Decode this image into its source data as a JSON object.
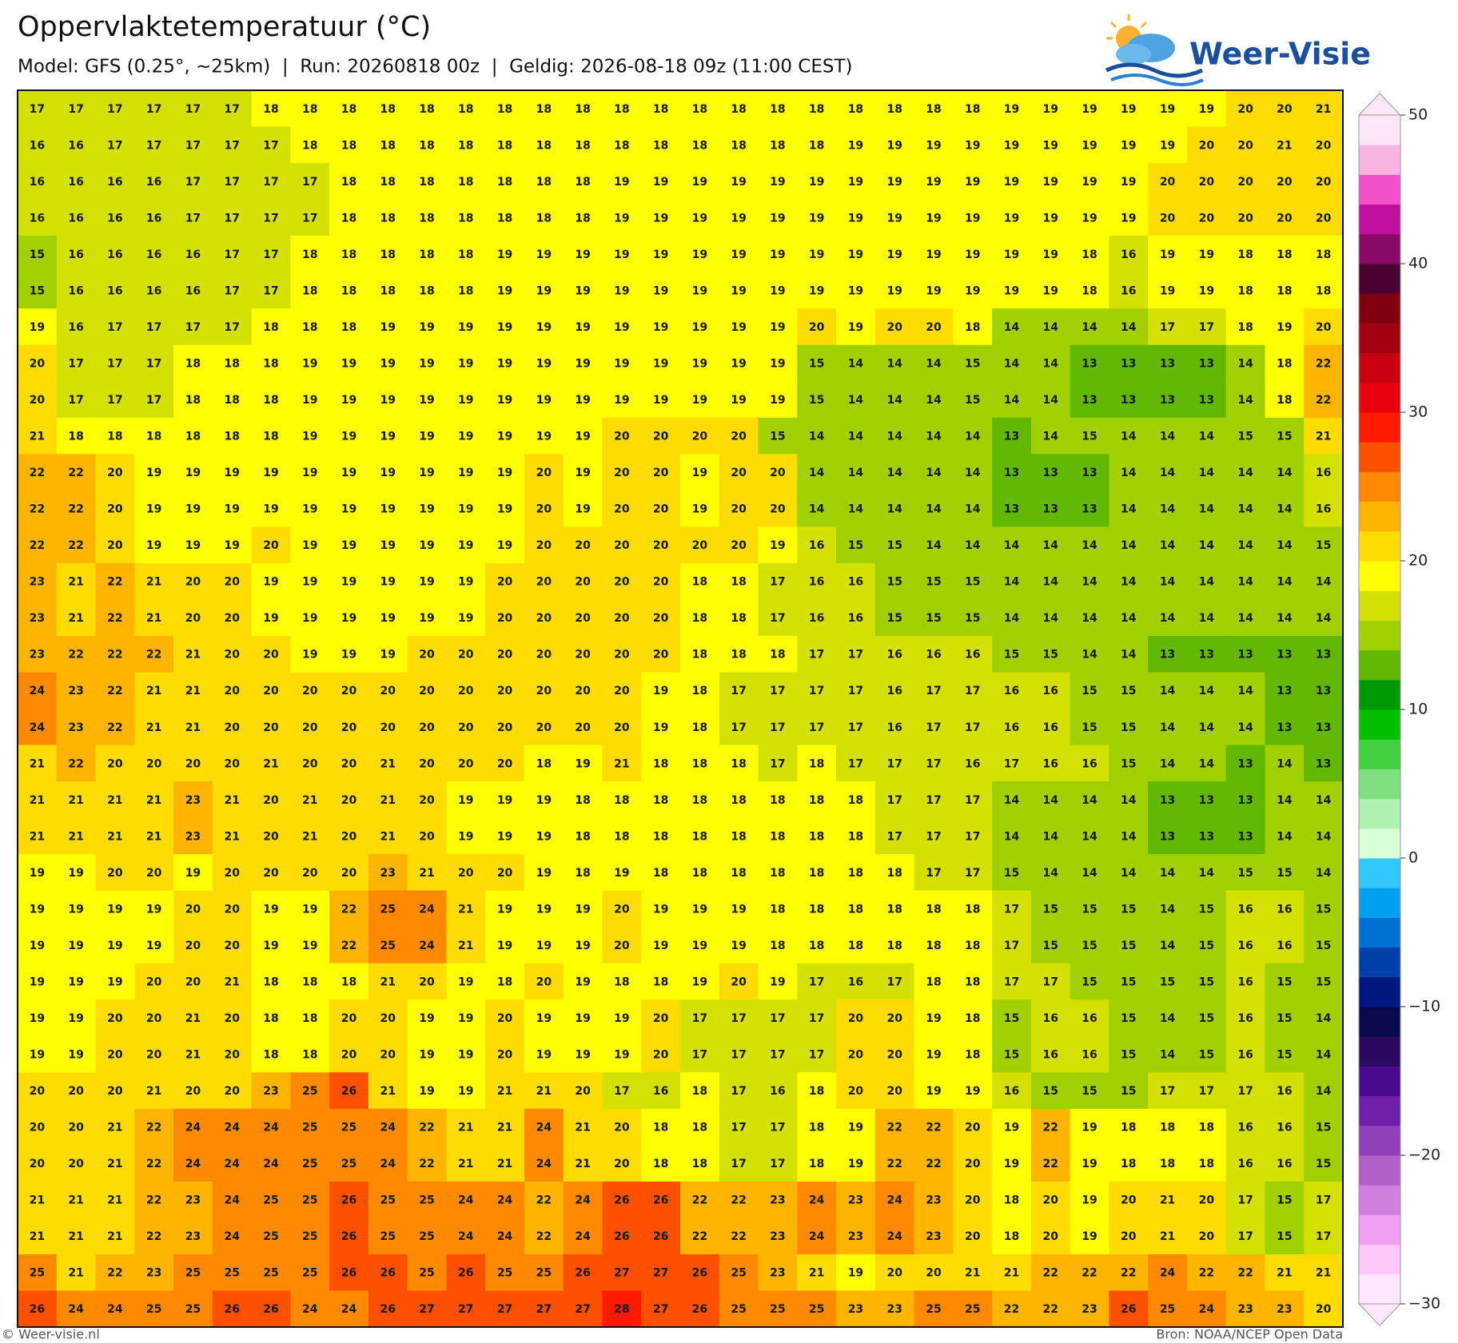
{
  "title": "Oppervlaktetemperatuur (°C)",
  "subtitle": "Model: GFS (0.25°, ~25km)  |  Run: 20260818 00z  |  Geldig: 2026-08-18 09z (11:00 CEST)",
  "logo": "Weer-Visie",
  "grid": {
    "rows": [
      [
        17,
        17,
        17,
        17,
        17,
        17,
        18,
        18,
        18,
        18,
        18,
        18,
        18,
        18,
        18,
        18,
        18,
        18,
        18,
        18,
        18,
        18,
        18,
        18,
        18,
        19,
        19,
        19,
        19,
        19,
        19,
        20,
        20,
        21
      ],
      [
        16,
        16,
        17,
        17,
        17,
        17,
        17,
        18,
        18,
        18,
        18,
        18,
        18,
        18,
        18,
        18,
        18,
        18,
        18,
        18,
        18,
        19,
        19,
        19,
        19,
        19,
        19,
        19,
        19,
        19,
        20,
        20,
        21,
        20
      ],
      [
        16,
        16,
        16,
        16,
        17,
        17,
        17,
        17,
        18,
        18,
        18,
        18,
        18,
        18,
        18,
        19,
        19,
        19,
        19,
        19,
        19,
        19,
        19,
        19,
        19,
        19,
        19,
        19,
        19,
        20,
        20,
        20,
        20,
        20
      ],
      [
        16,
        16,
        16,
        16,
        17,
        17,
        17,
        17,
        18,
        18,
        18,
        18,
        18,
        18,
        18,
        19,
        19,
        19,
        19,
        19,
        19,
        19,
        19,
        19,
        19,
        19,
        19,
        19,
        19,
        20,
        20,
        20,
        20,
        20
      ],
      [
        15,
        16,
        16,
        16,
        16,
        17,
        17,
        18,
        18,
        18,
        18,
        18,
        19,
        19,
        19,
        19,
        19,
        19,
        19,
        19,
        19,
        19,
        19,
        19,
        19,
        19,
        19,
        18,
        16,
        19,
        19,
        18,
        18,
        18
      ],
      [
        15,
        16,
        16,
        16,
        16,
        17,
        17,
        18,
        18,
        18,
        18,
        18,
        19,
        19,
        19,
        19,
        19,
        19,
        19,
        19,
        19,
        19,
        19,
        19,
        19,
        19,
        19,
        18,
        16,
        19,
        19,
        18,
        18,
        18
      ],
      [
        19,
        16,
        17,
        17,
        17,
        17,
        18,
        18,
        18,
        19,
        19,
        19,
        19,
        19,
        19,
        19,
        19,
        19,
        19,
        19,
        20,
        19,
        20,
        20,
        18,
        14,
        14,
        14,
        14,
        17,
        17,
        18,
        19,
        20
      ],
      [
        20,
        17,
        17,
        17,
        18,
        18,
        18,
        19,
        19,
        19,
        19,
        19,
        19,
        19,
        19,
        19,
        19,
        19,
        19,
        19,
        15,
        14,
        14,
        14,
        15,
        14,
        14,
        13,
        13,
        13,
        13,
        14,
        18,
        22
      ],
      [
        20,
        17,
        17,
        17,
        18,
        18,
        18,
        19,
        19,
        19,
        19,
        19,
        19,
        19,
        19,
        19,
        19,
        19,
        19,
        19,
        15,
        14,
        14,
        14,
        15,
        14,
        14,
        13,
        13,
        13,
        13,
        14,
        18,
        22
      ],
      [
        21,
        18,
        18,
        18,
        18,
        18,
        18,
        19,
        19,
        19,
        19,
        19,
        19,
        19,
        19,
        20,
        20,
        20,
        20,
        15,
        14,
        14,
        14,
        14,
        14,
        13,
        14,
        15,
        14,
        14,
        14,
        15,
        15,
        21
      ],
      [
        22,
        22,
        20,
        19,
        19,
        19,
        19,
        19,
        19,
        19,
        19,
        19,
        19,
        20,
        19,
        20,
        20,
        19,
        20,
        20,
        14,
        14,
        14,
        14,
        14,
        13,
        13,
        13,
        14,
        14,
        14,
        14,
        14,
        16
      ],
      [
        22,
        22,
        20,
        19,
        19,
        19,
        19,
        19,
        19,
        19,
        19,
        19,
        19,
        20,
        19,
        20,
        20,
        19,
        20,
        20,
        14,
        14,
        14,
        14,
        14,
        13,
        13,
        13,
        14,
        14,
        14,
        14,
        14,
        16
      ],
      [
        22,
        22,
        20,
        19,
        19,
        19,
        20,
        19,
        19,
        19,
        19,
        19,
        19,
        20,
        20,
        20,
        20,
        20,
        20,
        19,
        16,
        15,
        15,
        14,
        14,
        14,
        14,
        14,
        14,
        14,
        14,
        14,
        14,
        15
      ],
      [
        23,
        21,
        22,
        21,
        20,
        20,
        19,
        19,
        19,
        19,
        19,
        19,
        20,
        20,
        20,
        20,
        20,
        18,
        18,
        17,
        16,
        16,
        15,
        15,
        15,
        14,
        14,
        14,
        14,
        14,
        14,
        14,
        14,
        14
      ],
      [
        23,
        21,
        22,
        21,
        20,
        20,
        19,
        19,
        19,
        19,
        19,
        19,
        20,
        20,
        20,
        20,
        20,
        18,
        18,
        17,
        16,
        16,
        15,
        15,
        15,
        14,
        14,
        14,
        14,
        14,
        14,
        14,
        14,
        14
      ],
      [
        23,
        22,
        22,
        22,
        21,
        20,
        20,
        19,
        19,
        19,
        20,
        20,
        20,
        20,
        20,
        20,
        20,
        18,
        18,
        18,
        17,
        17,
        16,
        16,
        16,
        15,
        15,
        14,
        14,
        13,
        13,
        13,
        13,
        13
      ],
      [
        24,
        23,
        22,
        21,
        21,
        20,
        20,
        20,
        20,
        20,
        20,
        20,
        20,
        20,
        20,
        20,
        19,
        18,
        17,
        17,
        17,
        17,
        16,
        17,
        17,
        16,
        16,
        15,
        15,
        14,
        14,
        14,
        13,
        13
      ],
      [
        24,
        23,
        22,
        21,
        21,
        20,
        20,
        20,
        20,
        20,
        20,
        20,
        20,
        20,
        20,
        20,
        19,
        18,
        17,
        17,
        17,
        17,
        16,
        17,
        17,
        16,
        16,
        15,
        15,
        14,
        14,
        14,
        13,
        13
      ],
      [
        21,
        22,
        20,
        20,
        20,
        20,
        21,
        20,
        20,
        21,
        20,
        20,
        20,
        18,
        19,
        21,
        18,
        18,
        18,
        17,
        18,
        17,
        17,
        17,
        16,
        17,
        16,
        16,
        15,
        14,
        14,
        13,
        14,
        13
      ],
      [
        21,
        21,
        21,
        21,
        23,
        21,
        20,
        21,
        20,
        21,
        20,
        19,
        19,
        19,
        18,
        18,
        18,
        18,
        18,
        18,
        18,
        18,
        17,
        17,
        17,
        14,
        14,
        14,
        14,
        13,
        13,
        13,
        14,
        14
      ],
      [
        21,
        21,
        21,
        21,
        23,
        21,
        20,
        21,
        20,
        21,
        20,
        19,
        19,
        19,
        18,
        18,
        18,
        18,
        18,
        18,
        18,
        18,
        17,
        17,
        17,
        14,
        14,
        14,
        14,
        13,
        13,
        13,
        14,
        14
      ],
      [
        19,
        19,
        20,
        20,
        19,
        20,
        20,
        20,
        20,
        23,
        21,
        20,
        20,
        19,
        18,
        19,
        18,
        18,
        18,
        18,
        18,
        18,
        18,
        17,
        17,
        15,
        14,
        14,
        14,
        14,
        14,
        15,
        15,
        14
      ],
      [
        19,
        19,
        19,
        19,
        20,
        20,
        19,
        19,
        22,
        25,
        24,
        21,
        19,
        19,
        19,
        20,
        19,
        19,
        19,
        18,
        18,
        18,
        18,
        18,
        18,
        17,
        15,
        15,
        15,
        14,
        15,
        16,
        16,
        15
      ],
      [
        19,
        19,
        19,
        19,
        20,
        20,
        19,
        19,
        22,
        25,
        24,
        21,
        19,
        19,
        19,
        20,
        19,
        19,
        19,
        18,
        18,
        18,
        18,
        18,
        18,
        17,
        15,
        15,
        15,
        14,
        15,
        16,
        16,
        15
      ],
      [
        19,
        19,
        19,
        20,
        20,
        21,
        18,
        18,
        18,
        21,
        20,
        19,
        18,
        20,
        19,
        18,
        18,
        19,
        20,
        19,
        17,
        16,
        17,
        18,
        18,
        17,
        17,
        15,
        15,
        15,
        15,
        16,
        15,
        15
      ],
      [
        19,
        19,
        20,
        20,
        21,
        20,
        18,
        18,
        20,
        20,
        19,
        19,
        20,
        19,
        19,
        19,
        20,
        17,
        17,
        17,
        17,
        20,
        20,
        19,
        18,
        15,
        16,
        16,
        15,
        14,
        15,
        16,
        15,
        14
      ],
      [
        19,
        19,
        20,
        20,
        21,
        20,
        18,
        18,
        20,
        20,
        19,
        19,
        20,
        19,
        19,
        19,
        20,
        17,
        17,
        17,
        17,
        20,
        20,
        19,
        18,
        15,
        16,
        16,
        15,
        14,
        15,
        16,
        15,
        14
      ],
      [
        20,
        20,
        20,
        21,
        20,
        20,
        23,
        25,
        26,
        21,
        19,
        19,
        21,
        21,
        20,
        17,
        16,
        18,
        17,
        16,
        18,
        20,
        20,
        19,
        19,
        16,
        15,
        15,
        15,
        17,
        17,
        17,
        16,
        14
      ],
      [
        20,
        20,
        21,
        22,
        24,
        24,
        24,
        25,
        25,
        24,
        22,
        21,
        21,
        24,
        21,
        20,
        18,
        18,
        17,
        17,
        18,
        19,
        22,
        22,
        20,
        19,
        22,
        19,
        18,
        18,
        18,
        16,
        16,
        15
      ],
      [
        20,
        20,
        21,
        22,
        24,
        24,
        24,
        25,
        25,
        24,
        22,
        21,
        21,
        24,
        21,
        20,
        18,
        18,
        17,
        17,
        18,
        19,
        22,
        22,
        20,
        19,
        22,
        19,
        18,
        18,
        18,
        16,
        16,
        15
      ],
      [
        21,
        21,
        21,
        22,
        23,
        24,
        25,
        25,
        26,
        25,
        25,
        24,
        24,
        22,
        24,
        26,
        26,
        22,
        22,
        23,
        24,
        23,
        24,
        23,
        20,
        18,
        20,
        19,
        20,
        21,
        20,
        17,
        15,
        17
      ],
      [
        21,
        21,
        21,
        22,
        23,
        24,
        25,
        25,
        26,
        25,
        25,
        24,
        24,
        22,
        24,
        26,
        26,
        22,
        22,
        23,
        24,
        23,
        24,
        23,
        20,
        18,
        20,
        19,
        20,
        21,
        20,
        17,
        15,
        17
      ],
      [
        25,
        21,
        22,
        23,
        25,
        25,
        25,
        25,
        26,
        26,
        25,
        26,
        25,
        25,
        26,
        27,
        27,
        26,
        25,
        23,
        21,
        19,
        20,
        20,
        21,
        21,
        22,
        22,
        22,
        24,
        22,
        22,
        21,
        21
      ],
      [
        26,
        24,
        24,
        25,
        25,
        26,
        26,
        24,
        24,
        26,
        27,
        27,
        27,
        27,
        27,
        28,
        27,
        26,
        25,
        25,
        25,
        23,
        23,
        25,
        25,
        22,
        22,
        23,
        26,
        25,
        24,
        23,
        23,
        20
      ]
    ]
  },
  "colorbar": {
    "clim": [
      -30,
      50
    ],
    "ticks": [
      50,
      40,
      30,
      20,
      10,
      0,
      {
        "value": -10,
        "label": "−10"
      },
      {
        "value": -20,
        "label": "−20"
      },
      {
        "value": -30,
        "label": "−30"
      }
    ],
    "colors": [
      "#ffe8ff",
      "#ffc8f8",
      "#f0a0f0",
      "#d080e0",
      "#b060c8",
      "#9040b8",
      "#7020a8",
      "#4a0a90",
      "#2a0a60",
      "#0a0a50",
      "#001880",
      "#0040a8",
      "#0070d0",
      "#00a0f0",
      "#30c8ff",
      "#d8ffd8",
      "#b0f0b0",
      "#80e080",
      "#40d040",
      "#00c000",
      "#009800",
      "#60b800",
      "#a0d000",
      "#d4e000",
      "#ffff00",
      "#ffdc00",
      "#ffb400",
      "#ff8a00",
      "#ff5000",
      "#ff1a00",
      "#e60010",
      "#c80010",
      "#a00010",
      "#800010",
      "#4a0030",
      "#8a0a6a",
      "#c010a0",
      "#f050c8",
      "#f9b5e2",
      "#fde6f7"
    ]
  },
  "footer": {
    "left": "© Weer-visie.nl",
    "right": "Bron: NOAA/NCEP Open Data"
  }
}
